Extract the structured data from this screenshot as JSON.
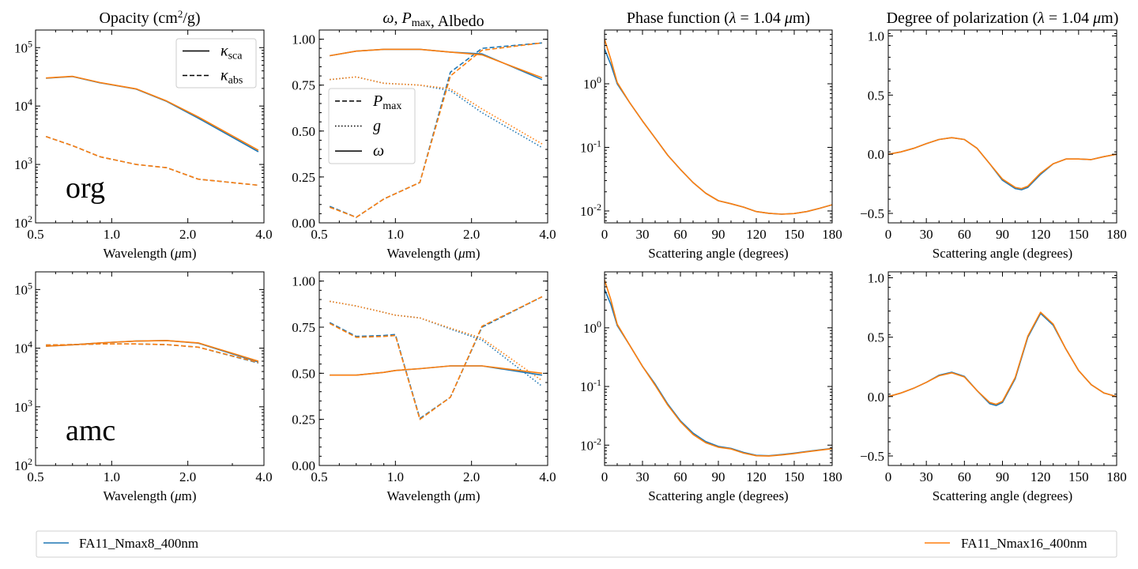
{
  "figure": {
    "legend": [
      {
        "label": "FA11_Nmax8_400nm",
        "color": "#1f77b4"
      },
      {
        "label": "FA11_Nmax16_400nm",
        "color": "#ff7f0e"
      }
    ]
  },
  "chart_data": [
    {
      "id": "org-opacity",
      "type": "line",
      "title": "Opacity (cm²/g)",
      "xlabel": "Wavelength (μm)",
      "ylabel": "",
      "xscale": "log",
      "yscale": "log",
      "xlim": [
        0.5,
        4.0
      ],
      "ylim": [
        100,
        200000
      ],
      "xticks": [
        0.5,
        1.0,
        2.0,
        4.0
      ],
      "xticklabels": [
        "0.5",
        "1.0",
        "2.0",
        "4.0"
      ],
      "yticks": [
        100,
        1000,
        10000,
        100000
      ],
      "annotation": "org",
      "legend": {
        "placement": "top-right",
        "entries": [
          {
            "label": "κsca",
            "style": "solid"
          },
          {
            "label": "κabs",
            "style": "dashed"
          }
        ]
      },
      "x": [
        0.55,
        0.7,
        0.9,
        1.25,
        1.65,
        2.2,
        3.8
      ],
      "series": [
        {
          "quantity": "κsca",
          "model": 0,
          "style": "solid",
          "values": [
            30000,
            32000,
            25000,
            19500,
            12000,
            6200,
            1650
          ]
        },
        {
          "quantity": "κsca",
          "model": 1,
          "style": "solid",
          "values": [
            30200,
            32200,
            25200,
            19700,
            12200,
            6500,
            1750
          ]
        },
        {
          "quantity": "κabs",
          "model": 0,
          "style": "dashed",
          "values": [
            3000,
            2100,
            1350,
            1000,
            880,
            560,
            440
          ]
        },
        {
          "quantity": "κabs",
          "model": 1,
          "style": "dashed",
          "values": [
            3000,
            2100,
            1350,
            1000,
            880,
            560,
            440
          ]
        }
      ]
    },
    {
      "id": "org-albedo",
      "type": "line",
      "title": "ω, Pmax, Albedo",
      "xlabel": "Wavelength (μm)",
      "ylabel": "",
      "xscale": "log",
      "yscale": "linear",
      "xlim": [
        0.5,
        4.0
      ],
      "ylim": [
        0,
        1.05
      ],
      "xticks": [
        0.5,
        1.0,
        2.0,
        4.0
      ],
      "xticklabels": [
        "0.5",
        "1.0",
        "2.0",
        "4.0"
      ],
      "yticks": [
        0,
        0.25,
        0.5,
        0.75,
        1.0
      ],
      "yticklabels": [
        "0.00",
        "0.25",
        "0.50",
        "0.75",
        "1.00"
      ],
      "legend": {
        "placement": "center-left",
        "entries": [
          {
            "label": "Pmax",
            "style": "dashed"
          },
          {
            "label": "g",
            "style": "dotted"
          },
          {
            "label": "ω",
            "style": "solid"
          }
        ]
      },
      "x": [
        0.55,
        0.7,
        0.9,
        1.25,
        1.65,
        2.2,
        3.8
      ],
      "series": [
        {
          "quantity": "Pmax",
          "model": 0,
          "style": "dashed",
          "values": [
            0.09,
            0.03,
            0.13,
            0.22,
            0.82,
            0.95,
            0.98
          ]
        },
        {
          "quantity": "Pmax",
          "model": 1,
          "style": "dashed",
          "values": [
            0.085,
            0.03,
            0.13,
            0.22,
            0.8,
            0.94,
            0.98
          ]
        },
        {
          "quantity": "g",
          "model": 0,
          "style": "dotted",
          "values": [
            0.78,
            0.795,
            0.76,
            0.75,
            0.72,
            0.6,
            0.41
          ]
        },
        {
          "quantity": "g",
          "model": 1,
          "style": "dotted",
          "values": [
            0.78,
            0.795,
            0.76,
            0.75,
            0.73,
            0.62,
            0.43
          ]
        },
        {
          "quantity": "ω",
          "model": 0,
          "style": "solid",
          "values": [
            0.91,
            0.935,
            0.945,
            0.945,
            0.93,
            0.92,
            0.78
          ]
        },
        {
          "quantity": "ω",
          "model": 1,
          "style": "solid",
          "values": [
            0.91,
            0.935,
            0.945,
            0.945,
            0.93,
            0.915,
            0.79
          ]
        }
      ]
    },
    {
      "id": "org-phase",
      "type": "line",
      "title": "Phase function (λ = 1.04 μm)",
      "xlabel": "Scattering angle (degrees)",
      "ylabel": "",
      "xscale": "linear",
      "yscale": "log",
      "xlim": [
        0,
        180
      ],
      "ylim": [
        0.0065,
        7
      ],
      "xticks": [
        0,
        30,
        60,
        90,
        120,
        150,
        180
      ],
      "yticks": [
        0.01,
        0.1,
        1
      ],
      "x": [
        0,
        5,
        10,
        20,
        30,
        40,
        50,
        60,
        70,
        80,
        90,
        100,
        110,
        120,
        130,
        140,
        150,
        160,
        170,
        180
      ],
      "series": [
        {
          "model": 0,
          "values": [
            3.5,
            2.0,
            1.0,
            0.5,
            0.26,
            0.14,
            0.075,
            0.045,
            0.028,
            0.019,
            0.0145,
            0.013,
            0.0115,
            0.0098,
            0.0092,
            0.0089,
            0.0091,
            0.0098,
            0.011,
            0.0125
          ]
        },
        {
          "model": 1,
          "values": [
            5.0,
            2.4,
            1.05,
            0.5,
            0.26,
            0.14,
            0.075,
            0.045,
            0.028,
            0.019,
            0.0145,
            0.013,
            0.0115,
            0.0098,
            0.0092,
            0.0089,
            0.0091,
            0.0098,
            0.011,
            0.0125
          ]
        }
      ]
    },
    {
      "id": "org-pol",
      "type": "line",
      "title": "Degree of polarization (λ = 1.04 μm)",
      "xlabel": "Scattering angle (degrees)",
      "ylabel": "",
      "xscale": "linear",
      "yscale": "linear",
      "xlim": [
        0,
        180
      ],
      "ylim": [
        -0.58,
        1.05
      ],
      "xticks": [
        0,
        30,
        60,
        90,
        120,
        150,
        180
      ],
      "yticks": [
        -0.5,
        0,
        0.5,
        1.0
      ],
      "yticklabels": [
        "−0.5",
        "0.0",
        "0.5",
        "1.0"
      ],
      "x": [
        0,
        10,
        20,
        30,
        40,
        50,
        60,
        70,
        80,
        90,
        100,
        105,
        110,
        120,
        130,
        140,
        150,
        160,
        170,
        180
      ],
      "series": [
        {
          "model": 0,
          "values": [
            0.0,
            0.02,
            0.05,
            0.09,
            0.125,
            0.14,
            0.125,
            0.05,
            -0.08,
            -0.22,
            -0.29,
            -0.3,
            -0.28,
            -0.17,
            -0.08,
            -0.04,
            -0.04,
            -0.045,
            -0.02,
            0.0
          ]
        },
        {
          "model": 1,
          "values": [
            0.0,
            0.02,
            0.05,
            0.09,
            0.125,
            0.14,
            0.125,
            0.05,
            -0.08,
            -0.21,
            -0.28,
            -0.29,
            -0.27,
            -0.16,
            -0.08,
            -0.04,
            -0.04,
            -0.045,
            -0.02,
            0.0
          ]
        }
      ]
    },
    {
      "id": "amc-opacity",
      "type": "line",
      "title": "",
      "xlabel": "Wavelength (μm)",
      "ylabel": "",
      "xscale": "log",
      "yscale": "log",
      "xlim": [
        0.5,
        4.0
      ],
      "ylim": [
        100,
        200000
      ],
      "xticks": [
        0.5,
        1.0,
        2.0,
        4.0
      ],
      "xticklabels": [
        "0.5",
        "1.0",
        "2.0",
        "4.0"
      ],
      "yticks": [
        100,
        1000,
        10000,
        100000
      ],
      "annotation": "amc",
      "x": [
        0.55,
        0.7,
        0.9,
        1.25,
        1.65,
        2.2,
        3.8
      ],
      "series": [
        {
          "quantity": "κsca",
          "model": 0,
          "style": "solid",
          "values": [
            10800,
            11400,
            12300,
            13200,
            13500,
            12200,
            5800
          ]
        },
        {
          "quantity": "κsca",
          "model": 1,
          "style": "solid",
          "values": [
            10800,
            11400,
            12300,
            13200,
            13500,
            12300,
            6000
          ]
        },
        {
          "quantity": "κabs",
          "model": 0,
          "style": "dashed",
          "values": [
            11300,
            11500,
            11800,
            11800,
            11500,
            10400,
            5600
          ]
        },
        {
          "quantity": "κabs",
          "model": 1,
          "style": "dashed",
          "values": [
            11300,
            11500,
            11800,
            11800,
            11500,
            10400,
            5700
          ]
        }
      ]
    },
    {
      "id": "amc-albedo",
      "type": "line",
      "title": "",
      "xlabel": "Wavelength (μm)",
      "ylabel": "",
      "xscale": "log",
      "yscale": "linear",
      "xlim": [
        0.5,
        4.0
      ],
      "ylim": [
        0,
        1.05
      ],
      "xticks": [
        0.5,
        1.0,
        2.0,
        4.0
      ],
      "xticklabels": [
        "0.5",
        "1.0",
        "2.0",
        "4.0"
      ],
      "yticks": [
        0,
        0.25,
        0.5,
        0.75,
        1.0
      ],
      "yticklabels": [
        "0.00",
        "0.25",
        "0.50",
        "0.75",
        "1.00"
      ],
      "x": [
        0.55,
        0.7,
        0.9,
        1.0,
        1.25,
        1.65,
        2.2,
        3.8
      ],
      "series": [
        {
          "quantity": "Pmax",
          "model": 0,
          "style": "dashed",
          "values": [
            0.775,
            0.7,
            0.705,
            0.71,
            0.255,
            0.37,
            0.75,
            0.915
          ]
        },
        {
          "quantity": "Pmax",
          "model": 1,
          "style": "dashed",
          "values": [
            0.77,
            0.695,
            0.7,
            0.705,
            0.25,
            0.37,
            0.755,
            0.915
          ]
        },
        {
          "quantity": "g",
          "model": 0,
          "style": "dotted",
          "values": [
            0.89,
            0.865,
            0.83,
            0.815,
            0.8,
            0.74,
            0.68,
            0.43
          ]
        },
        {
          "quantity": "g",
          "model": 1,
          "style": "dotted",
          "values": [
            0.89,
            0.865,
            0.83,
            0.815,
            0.8,
            0.745,
            0.69,
            0.46
          ]
        },
        {
          "quantity": "ω",
          "model": 0,
          "style": "solid",
          "values": [
            0.49,
            0.49,
            0.505,
            0.515,
            0.525,
            0.54,
            0.54,
            0.49
          ]
        },
        {
          "quantity": "ω",
          "model": 1,
          "style": "solid",
          "values": [
            0.49,
            0.49,
            0.505,
            0.515,
            0.525,
            0.54,
            0.54,
            0.5
          ]
        }
      ]
    },
    {
      "id": "amc-phase",
      "type": "line",
      "title": "",
      "xlabel": "Scattering angle (degrees)",
      "ylabel": "",
      "xscale": "linear",
      "yscale": "log",
      "xlim": [
        0,
        180
      ],
      "ylim": [
        0.0045,
        9
      ],
      "xticks": [
        0,
        30,
        60,
        90,
        120,
        150,
        180
      ],
      "yticks": [
        0.01,
        0.1,
        1
      ],
      "x": [
        0,
        5,
        10,
        20,
        30,
        40,
        50,
        60,
        70,
        80,
        90,
        100,
        110,
        120,
        130,
        140,
        150,
        160,
        170,
        180
      ],
      "series": [
        {
          "model": 0,
          "values": [
            4.5,
            2.5,
            1.1,
            0.5,
            0.22,
            0.11,
            0.05,
            0.026,
            0.016,
            0.0115,
            0.0095,
            0.0088,
            0.0075,
            0.0067,
            0.0066,
            0.0069,
            0.0073,
            0.0078,
            0.0083,
            0.0088
          ]
        },
        {
          "model": 1,
          "values": [
            6.5,
            3.0,
            1.15,
            0.5,
            0.22,
            0.105,
            0.048,
            0.025,
            0.0152,
            0.011,
            0.0092,
            0.0086,
            0.0073,
            0.0066,
            0.0065,
            0.0068,
            0.0072,
            0.0077,
            0.0082,
            0.0087
          ]
        }
      ]
    },
    {
      "id": "amc-pol",
      "type": "line",
      "title": "",
      "xlabel": "Scattering angle (degrees)",
      "ylabel": "",
      "xscale": "linear",
      "yscale": "linear",
      "xlim": [
        0,
        180
      ],
      "ylim": [
        -0.58,
        1.05
      ],
      "xticks": [
        0,
        30,
        60,
        90,
        120,
        150,
        180
      ],
      "yticks": [
        -0.5,
        0,
        0.5,
        1.0
      ],
      "yticklabels": [
        "−0.5",
        "0.0",
        "0.5",
        "1.0"
      ],
      "x": [
        0,
        10,
        20,
        30,
        40,
        50,
        60,
        70,
        80,
        85,
        90,
        100,
        110,
        120,
        130,
        140,
        150,
        160,
        170,
        180
      ],
      "series": [
        {
          "model": 0,
          "values": [
            0.0,
            0.03,
            0.07,
            0.12,
            0.18,
            0.205,
            0.17,
            0.05,
            -0.06,
            -0.075,
            -0.05,
            0.15,
            0.5,
            0.7,
            0.6,
            0.4,
            0.22,
            0.1,
            0.03,
            0.0
          ]
        },
        {
          "model": 1,
          "values": [
            0.0,
            0.03,
            0.07,
            0.12,
            0.175,
            0.2,
            0.165,
            0.05,
            -0.05,
            -0.065,
            -0.04,
            0.16,
            0.51,
            0.71,
            0.61,
            0.4,
            0.22,
            0.1,
            0.03,
            0.0
          ]
        }
      ]
    }
  ]
}
